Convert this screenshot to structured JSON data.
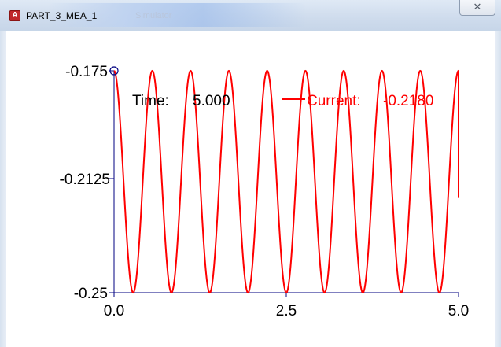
{
  "window": {
    "title": "PART_3_MEA_1",
    "title_ghost": "Simulator",
    "app_icon_letter": "A",
    "close_glyph": "✕"
  },
  "plot_legend": {
    "time_label": "Time:",
    "time_value": "5.000",
    "current_label": "Current:",
    "current_value": "-0.2180",
    "current_color": "#ff0000"
  },
  "chart_data": {
    "type": "line",
    "title": "",
    "xlabel": "",
    "ylabel": "",
    "xlim": [
      0,
      5
    ],
    "ylim": [
      -0.25,
      -0.175
    ],
    "x_ticks": [
      "0.0",
      "2.5",
      "5.0"
    ],
    "y_ticks": [
      "-0.175",
      "-0.2125",
      "-0.25"
    ],
    "grid": false,
    "series": [
      {
        "name": "Current",
        "color": "#ff0000",
        "function": "sinusoid",
        "center": -0.2125,
        "amplitude": 0.0375,
        "frequency": 1.8,
        "phase_at_x0": "maximum",
        "x_start": 0,
        "x_end": 5,
        "end_value": -0.218
      }
    ],
    "cursor_marker": {
      "x": 0,
      "y": -0.175
    }
  }
}
